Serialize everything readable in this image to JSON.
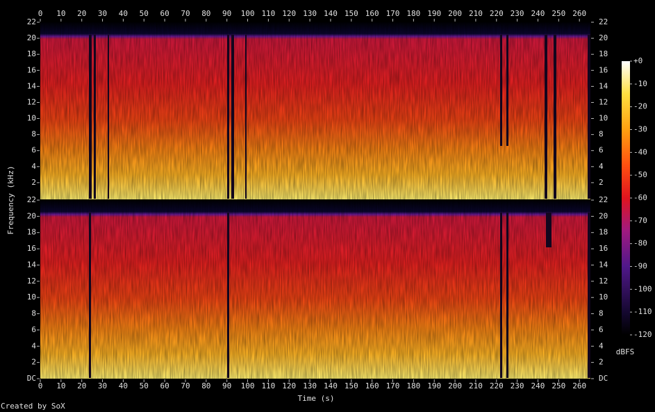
{
  "chart_data": {
    "type": "spectrogram",
    "x_label": "Time (s)",
    "y_label": "Frequency (kHz)",
    "xlim": [
      0,
      265.3
    ],
    "xticks": [
      0,
      10,
      20,
      30,
      40,
      50,
      60,
      70,
      80,
      90,
      100,
      110,
      120,
      130,
      140,
      150,
      160,
      170,
      180,
      190,
      200,
      210,
      220,
      230,
      240,
      250,
      260
    ],
    "panels": [
      {
        "ylim": [
          0,
          22
        ],
        "yticks": [
          2,
          4,
          6,
          8,
          10,
          12,
          14,
          16,
          18,
          20,
          22
        ]
      },
      {
        "ylim": [
          0,
          22
        ],
        "yticks": [
          {
            "value": 0,
            "label": "DC"
          },
          2,
          4,
          6,
          8,
          10,
          12,
          14,
          16,
          18,
          20,
          22
        ]
      }
    ],
    "colorbar": {
      "zlim": [
        -120,
        0
      ],
      "zticks": [
        {
          "value": 0,
          "label": "+0"
        },
        -10,
        -20,
        -30,
        -40,
        -50,
        -60,
        -70,
        -80,
        -90,
        -100,
        -110,
        -120
      ],
      "label": "dBFS"
    },
    "footer": "Created by SoX"
  }
}
